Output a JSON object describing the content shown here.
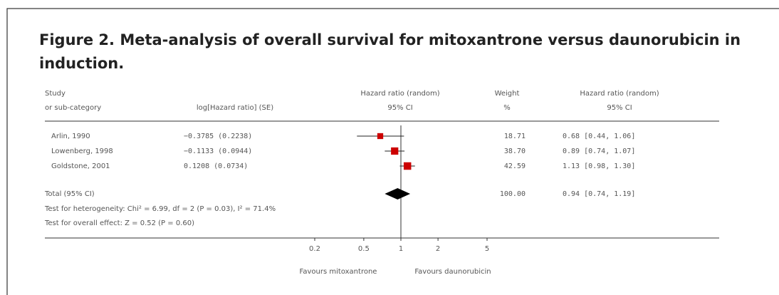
{
  "figure": {
    "title": "Figure 2. Meta-analysis of overall survival for mitoxantrone versus daunorubicin in",
    "title_line2": "induction."
  },
  "chart_data": {
    "type": "forest",
    "headers": {
      "study": "Study",
      "study_sub": "or sub-category",
      "log_hr": "log[Hazard ratio] (SE)",
      "plot": "Hazard ratio (random)",
      "plot_sub": "95% CI",
      "weight": "Weight",
      "weight_sub": "%",
      "hr": "Hazard ratio (random)",
      "hr_sub": "95% CI"
    },
    "studies": [
      {
        "name": "Arlin, 1990",
        "log_hr_se": "−0.3785 (0.2238)",
        "weight": 18.71,
        "weight_label": "18.71",
        "hr": 0.68,
        "ci": [
          0.44,
          1.06
        ],
        "hr_label": "0.68 [0.44, 1.06]"
      },
      {
        "name": "Lowenberg, 1998",
        "log_hr_se": "−0.1133 (0.0944)",
        "weight": 38.7,
        "weight_label": "38.70",
        "hr": 0.89,
        "ci": [
          0.74,
          1.07
        ],
        "hr_label": "0.89 [0.74, 1.07]"
      },
      {
        "name": "Goldstone, 2001",
        "log_hr_se": "0.1208 (0.0734)",
        "weight": 42.59,
        "weight_label": "42.59",
        "hr": 1.13,
        "ci": [
          0.98,
          1.3
        ],
        "hr_label": "1.13 [0.98, 1.30]"
      }
    ],
    "total": {
      "name": "Total (95% CI)",
      "weight": 100,
      "weight_label": "100.00",
      "hr": 0.94,
      "ci": [
        0.74,
        1.19
      ],
      "hr_label": "0.94 [0.74, 1.19]"
    },
    "heterogeneity": "Test for heterogeneity: Chi² = 6.99, df = 2 (P = 0.03), I² = 71.4%",
    "overall_effect": "Test for overall effect: Z = 0.52 (P = 0.60)",
    "log_scale": true,
    "xlim": [
      0.2,
      5
    ],
    "xticks": [
      0.2,
      0.5,
      1,
      2,
      5
    ],
    "favours_left": "Favours mitoxantrone",
    "favours_right": "Favours daunorubicin",
    "color": "#cc0000"
  }
}
